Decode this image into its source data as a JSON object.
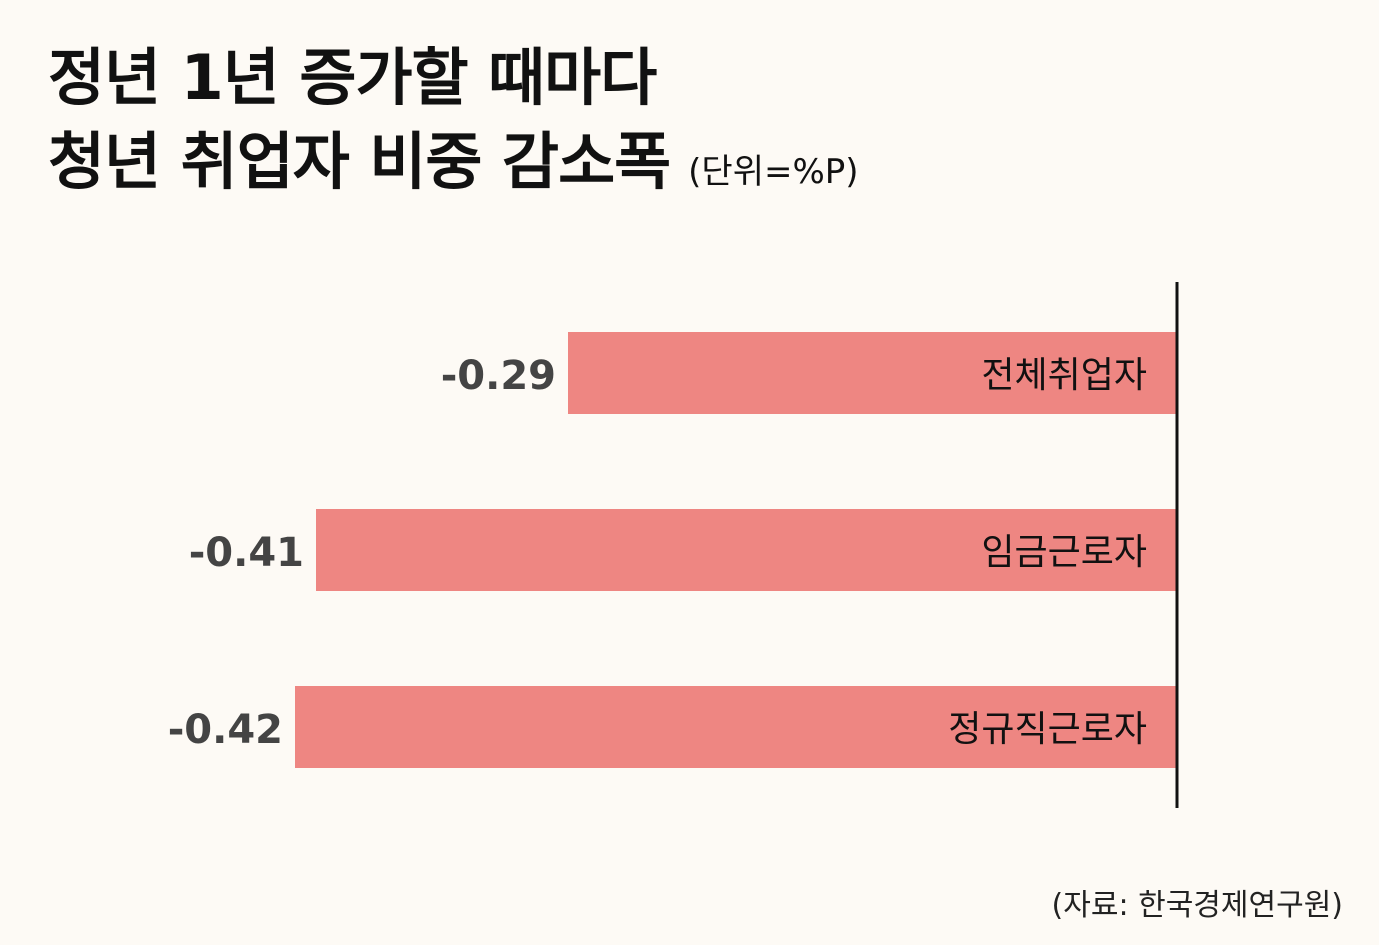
{
  "title": {
    "line1": "정년 1년 증가할 때마다",
    "line2": "청년 취업자 비중 감소폭",
    "unit": "(단위=%P)"
  },
  "source": "(자료: 한국경제연구원)",
  "colors": {
    "bar": "#ee8682",
    "value_label": "#444444",
    "category_label": "#111111",
    "axis": "#111111",
    "background": "#fdfaf5"
  },
  "chart_data": {
    "type": "bar",
    "orientation": "horizontal",
    "categories": [
      "전체취업자",
      "임금근로자",
      "정규직근로자"
    ],
    "values": [
      -0.29,
      -0.41,
      -0.42
    ],
    "value_labels": [
      "-0.29",
      "-0.41",
      "-0.42"
    ],
    "xlim": [
      -0.6,
      0
    ],
    "grid": false,
    "legend": "none"
  }
}
